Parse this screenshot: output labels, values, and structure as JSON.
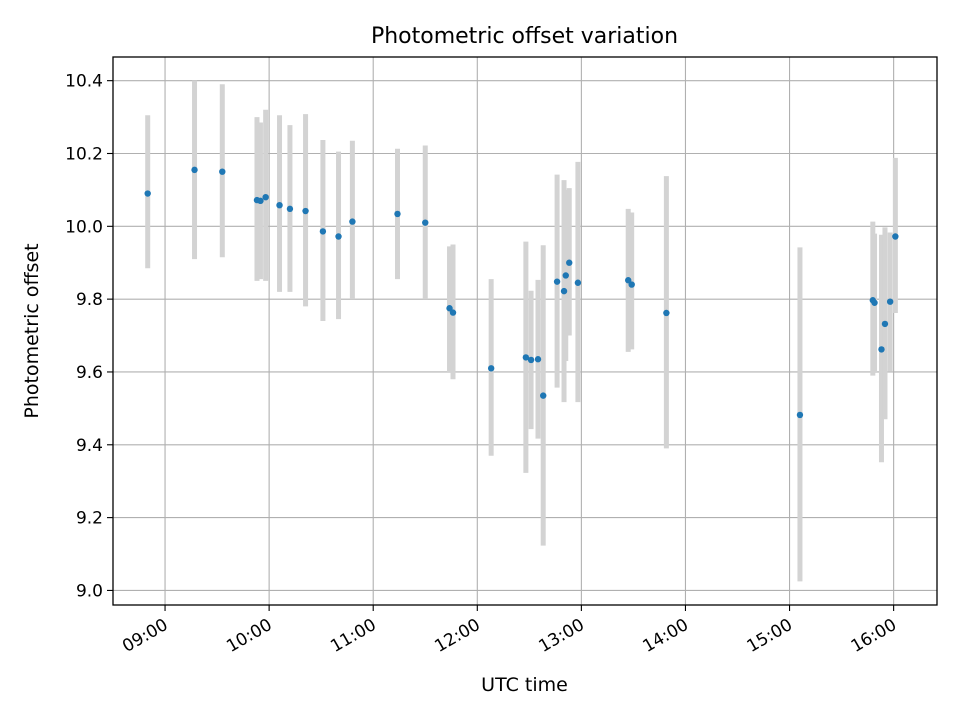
{
  "chart_data": {
    "type": "scatter",
    "title": "Photometric offset variation",
    "xlabel": "UTC time",
    "ylabel": "Photometric offset",
    "xlim": [
      "08:30",
      "16:25"
    ],
    "ylim": [
      8.96,
      10.465
    ],
    "grid": true,
    "x_ticks": [
      "09:00",
      "10:00",
      "11:00",
      "12:00",
      "13:00",
      "14:00",
      "15:00",
      "16:00"
    ],
    "y_ticks": [
      "9.0",
      "9.2",
      "9.4",
      "9.6",
      "9.8",
      "10.0",
      "10.2",
      "10.4"
    ],
    "point_color": "#1f77b4",
    "errorbar_color": "#d3d3d3",
    "points": [
      {
        "x": "08:50",
        "y": 10.09,
        "lo": 9.885,
        "hi": 10.305
      },
      {
        "x": "09:17",
        "y": 10.155,
        "lo": 9.91,
        "hi": 10.4
      },
      {
        "x": "09:33",
        "y": 10.15,
        "lo": 9.915,
        "hi": 10.39
      },
      {
        "x": "09:53",
        "y": 10.072,
        "lo": 9.85,
        "hi": 10.3
      },
      {
        "x": "09:55",
        "y": 10.07,
        "lo": 9.855,
        "hi": 10.285
      },
      {
        "x": "09:58",
        "y": 10.08,
        "lo": 9.85,
        "hi": 10.32
      },
      {
        "x": "10:06",
        "y": 10.058,
        "lo": 9.82,
        "hi": 10.305
      },
      {
        "x": "10:12",
        "y": 10.048,
        "lo": 9.82,
        "hi": 10.278
      },
      {
        "x": "10:21",
        "y": 10.042,
        "lo": 9.78,
        "hi": 10.308
      },
      {
        "x": "10:31",
        "y": 9.986,
        "lo": 9.74,
        "hi": 10.237
      },
      {
        "x": "10:40",
        "y": 9.972,
        "lo": 9.745,
        "hi": 10.205
      },
      {
        "x": "10:48",
        "y": 10.013,
        "lo": 9.8,
        "hi": 10.235
      },
      {
        "x": "11:14",
        "y": 10.034,
        "lo": 9.855,
        "hi": 10.213
      },
      {
        "x": "11:30",
        "y": 10.01,
        "lo": 9.8,
        "hi": 10.222
      },
      {
        "x": "11:44",
        "y": 9.775,
        "lo": 9.6,
        "hi": 9.945
      },
      {
        "x": "11:46",
        "y": 9.763,
        "lo": 9.58,
        "hi": 9.95
      },
      {
        "x": "12:08",
        "y": 9.61,
        "lo": 9.37,
        "hi": 9.855
      },
      {
        "x": "12:28",
        "y": 9.64,
        "lo": 9.323,
        "hi": 9.958
      },
      {
        "x": "12:31",
        "y": 9.633,
        "lo": 9.443,
        "hi": 9.823
      },
      {
        "x": "12:35",
        "y": 9.635,
        "lo": 9.417,
        "hi": 9.853
      },
      {
        "x": "12:38",
        "y": 9.535,
        "lo": 9.123,
        "hi": 9.948
      },
      {
        "x": "12:46",
        "y": 9.848,
        "lo": 9.557,
        "hi": 10.142
      },
      {
        "x": "12:50",
        "y": 9.822,
        "lo": 9.517,
        "hi": 10.127
      },
      {
        "x": "12:51",
        "y": 9.865,
        "lo": 9.63,
        "hi": 10.1
      },
      {
        "x": "12:53",
        "y": 9.9,
        "lo": 9.7,
        "hi": 10.105
      },
      {
        "x": "12:58",
        "y": 9.845,
        "lo": 9.517,
        "hi": 10.177
      },
      {
        "x": "13:27",
        "y": 9.852,
        "lo": 9.655,
        "hi": 10.048
      },
      {
        "x": "13:29",
        "y": 9.84,
        "lo": 9.662,
        "hi": 10.038
      },
      {
        "x": "13:49",
        "y": 9.762,
        "lo": 9.39,
        "hi": 10.138
      },
      {
        "x": "15:06",
        "y": 9.482,
        "lo": 9.025,
        "hi": 9.942
      },
      {
        "x": "15:48",
        "y": 9.797,
        "lo": 9.59,
        "hi": 10.013
      },
      {
        "x": "15:49",
        "y": 9.79,
        "lo": 9.6,
        "hi": 9.98
      },
      {
        "x": "15:53",
        "y": 9.662,
        "lo": 9.352,
        "hi": 9.977
      },
      {
        "x": "15:55",
        "y": 9.732,
        "lo": 9.47,
        "hi": 9.997
      },
      {
        "x": "15:58",
        "y": 9.793,
        "lo": 9.602,
        "hi": 9.983
      },
      {
        "x": "16:01",
        "y": 9.972,
        "lo": 9.762,
        "hi": 10.188
      }
    ]
  }
}
